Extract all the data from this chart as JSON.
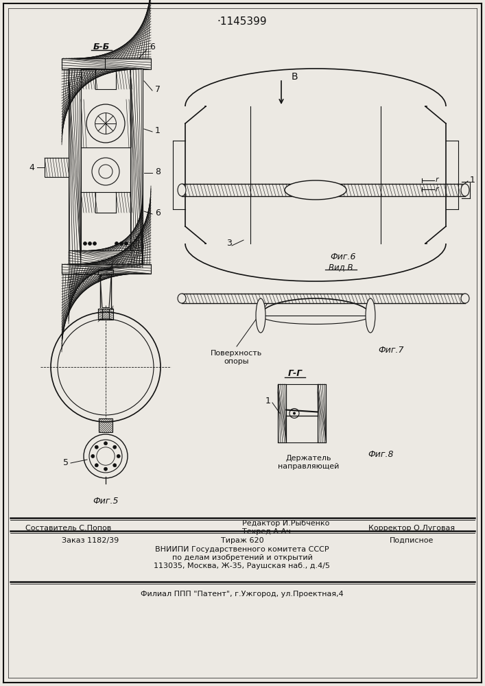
{
  "patent_number": "·1145399",
  "bg_color": "#ece9e3",
  "editor_line": "Редактор И.Рыбченко",
  "sostavitel_line": "Составитель С.Попов",
  "tehred_line": "Техред А.Ач",
  "korrektor_line": "Корректор О.Луговая",
  "zakaz_line": "Заказ 1182/39",
  "tirazh_line": "Тираж 620",
  "podpisnoe_line": "Подписное",
  "vnipi_line": "ВНИИПИ Государственного комитета СССР",
  "po_delam_line": "по делам изобретений и открытий",
  "address_line": "113035, Москва, Ж-35, Раушская наб., д.4/5",
  "filial_line": "Филиал ППП \"Патент\", г.Ужгород, ул.Проектная,4"
}
